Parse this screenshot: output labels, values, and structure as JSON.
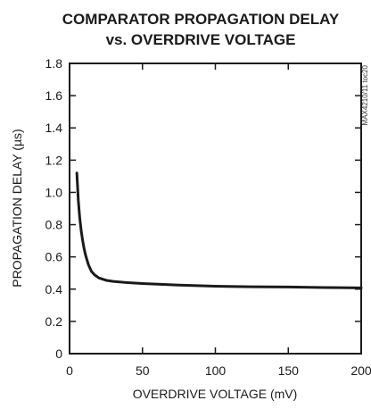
{
  "chart_data": {
    "type": "line",
    "title_lines": [
      "COMPARATOR PROPAGATION DELAY",
      "vs. OVERDRIVE VOLTAGE"
    ],
    "xlabel": "OVERDRIVE VOLTAGE (mV)",
    "ylabel": "PROPAGATION DELAY (µs)",
    "xlim": [
      0,
      200
    ],
    "ylim": [
      0,
      1.8
    ],
    "x_ticks": [
      0,
      50,
      100,
      150,
      200
    ],
    "y_ticks": [
      0,
      0.2,
      0.4,
      0.6,
      0.8,
      1.0,
      1.2,
      1.4,
      1.6,
      1.8
    ],
    "y_tick_labels": [
      "0",
      "0.2",
      "0.4",
      "0.6",
      "0.8",
      "1.0",
      "1.2",
      "1.4",
      "1.6",
      "1.8"
    ],
    "grid": false,
    "side_note": "MAX4210/11 toc20",
    "line_color": "#1a1a1a",
    "series": [
      {
        "x": [
          5,
          6,
          7,
          8,
          9,
          10,
          11,
          12,
          13,
          15,
          17,
          20,
          25,
          30,
          40,
          50,
          75,
          100,
          125,
          150,
          175,
          200
        ],
        "y": [
          1.12,
          0.95,
          0.84,
          0.76,
          0.7,
          0.65,
          0.61,
          0.58,
          0.55,
          0.51,
          0.49,
          0.47,
          0.455,
          0.448,
          0.44,
          0.435,
          0.425,
          0.418,
          0.415,
          0.413,
          0.41,
          0.408
        ]
      }
    ]
  }
}
